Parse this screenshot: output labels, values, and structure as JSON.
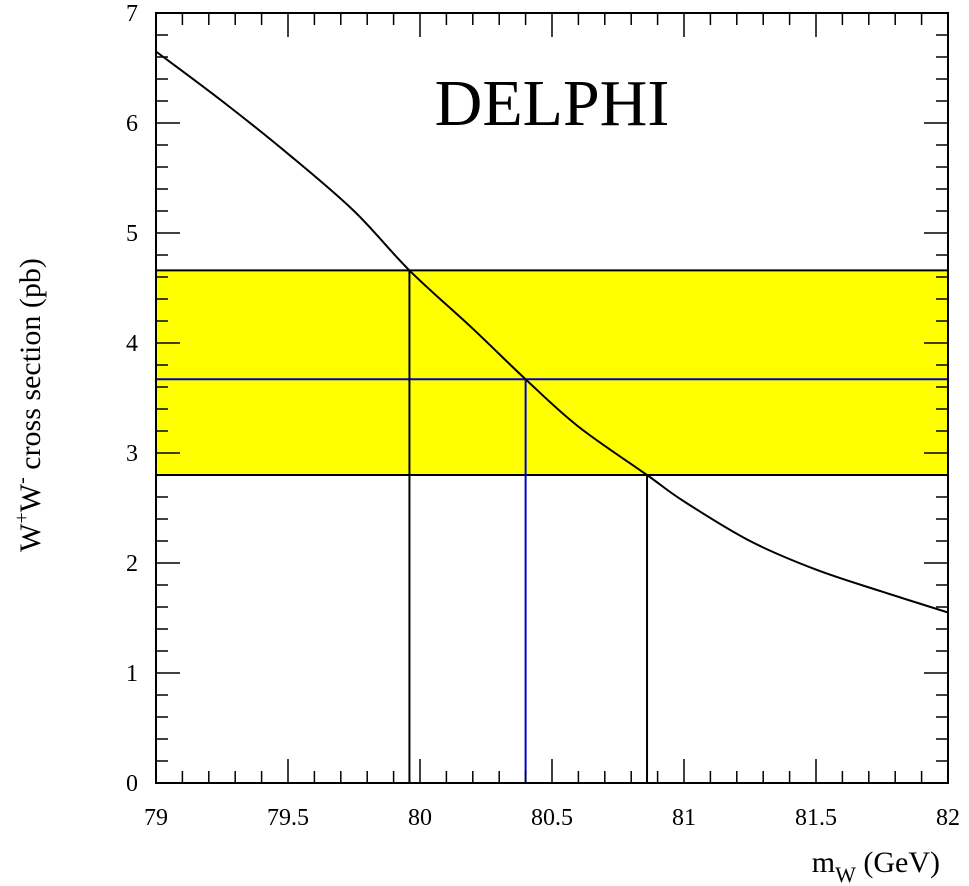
{
  "chart_data": {
    "type": "line",
    "title": "DELPHI",
    "xlabel": {
      "base": "m",
      "sub": "W",
      "rest": " (GeV)"
    },
    "ylabel": {
      "pre": "W",
      "sup1": "+",
      "mid": "W",
      "sup2": "-",
      "rest": " cross section (pb)"
    },
    "xlim": [
      79,
      82
    ],
    "ylim": [
      0,
      7
    ],
    "x_ticks": [
      "79",
      "79.5",
      "80",
      "80.5",
      "81",
      "81.5",
      "82"
    ],
    "y_ticks": [
      "0",
      "1",
      "2",
      "3",
      "4",
      "5",
      "6",
      "7"
    ],
    "grid": false,
    "series": [
      {
        "x": [
          79.0,
          79.25,
          79.5,
          79.75,
          79.96,
          80.2,
          80.4,
          80.6,
          80.86,
          81.0,
          81.25,
          81.5,
          81.75,
          82.0
        ],
        "y": [
          6.65,
          6.2,
          5.72,
          5.2,
          4.66,
          4.13,
          3.67,
          3.24,
          2.8,
          2.56,
          2.2,
          1.94,
          1.74,
          1.55
        ],
        "color": "#000000"
      }
    ],
    "band": {
      "y_low": 2.8,
      "y_high": 4.66,
      "color": "#ffff00"
    },
    "measured_value": {
      "y": 3.67,
      "x": 80.4,
      "color": "#0000cc"
    },
    "lower_bound": {
      "x": 79.96,
      "y": 4.66
    },
    "upper_bound": {
      "x": 80.86,
      "y": 2.8
    }
  }
}
